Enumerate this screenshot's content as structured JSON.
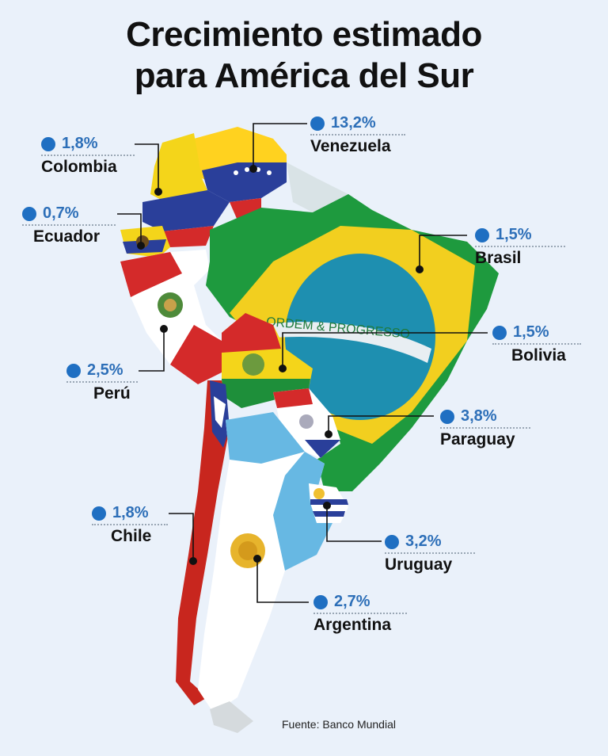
{
  "title": {
    "line1": "Crecimiento estimado",
    "line2": "para América del Sur"
  },
  "countries": {
    "venezuela": {
      "value": "13,2%",
      "name": "Venezuela"
    },
    "colombia": {
      "value": "1,8%",
      "name": "Colombia"
    },
    "ecuador": {
      "value": "0,7%",
      "name": "Ecuador"
    },
    "brasil": {
      "value": "1,5%",
      "name": "Brasil"
    },
    "bolivia": {
      "value": "1,5%",
      "name": "Bolivia"
    },
    "peru": {
      "value": "2,5%",
      "name": "Perú"
    },
    "paraguay": {
      "value": "3,8%",
      "name": "Paraguay"
    },
    "chile": {
      "value": "1,8%",
      "name": "Chile"
    },
    "uruguay": {
      "value": "3,2%",
      "name": "Uruguay"
    },
    "argentina": {
      "value": "2,7%",
      "name": "Argentina"
    }
  },
  "brazil_motto": "ORDEM & PROGRESSO",
  "source": "Fuente: Banco Mundial",
  "colors": {
    "accent": "#1f6fc2",
    "text": "#111111",
    "background": "#eaf1fa"
  }
}
